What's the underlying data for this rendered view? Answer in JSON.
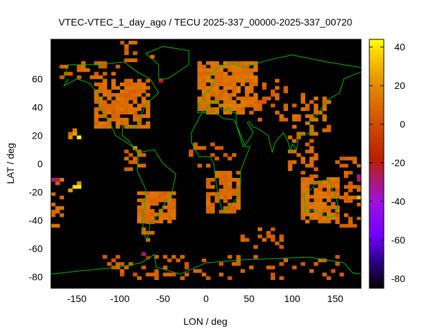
{
  "chart_data": {
    "type": "heatmap",
    "title": "VTEC-VTEC_1_day_ago / TECU 2025-337_00000-2025-337_00720",
    "xlabel": "LON / deg",
    "ylabel": "LAT / deg",
    "xlim": [
      -180,
      180
    ],
    "ylim": [
      -88,
      88
    ],
    "xticks": [
      -150,
      -100,
      -50,
      0,
      50,
      100,
      150
    ],
    "yticks": [
      -80,
      -60,
      -40,
      -20,
      0,
      20,
      40,
      60
    ],
    "cell_size_deg": [
      5,
      2.5
    ],
    "background_value": "no data",
    "colorbar": {
      "range": [
        -85,
        44
      ],
      "ticks": [
        -80,
        -60,
        -40,
        -20,
        0,
        20,
        40
      ],
      "stops": [
        {
          "v": -85,
          "c": "#000000"
        },
        {
          "v": -70,
          "c": "#300090"
        },
        {
          "v": -58,
          "c": "#7000ff"
        },
        {
          "v": -40,
          "c": "#a010e0"
        },
        {
          "v": -25,
          "c": "#b01c48"
        },
        {
          "v": -18,
          "c": "#b82000"
        },
        {
          "v": 0,
          "c": "#d04c00"
        },
        {
          "v": 20,
          "c": "#e48a00"
        },
        {
          "v": 36,
          "c": "#f8d000"
        },
        {
          "v": 44,
          "c": "#ffff00"
        }
      ]
    },
    "regions": [
      {
        "lon": [
          -130,
          -65
        ],
        "lat": [
          25,
          60
        ],
        "value": 10,
        "coverage": 0.8
      },
      {
        "lon": [
          -170,
          -100
        ],
        "lat": [
          60,
          72
        ],
        "value": 8,
        "coverage": 0.45
      },
      {
        "lon": [
          -100,
          -60
        ],
        "lat": [
          72,
          85
        ],
        "value": 8,
        "coverage": 0.25
      },
      {
        "lon": [
          -10,
          60
        ],
        "lat": [
          35,
          72
        ],
        "value": 12,
        "coverage": 0.8
      },
      {
        "lon": [
          60,
          95
        ],
        "lat": [
          30,
          60
        ],
        "value": 8,
        "coverage": 0.25
      },
      {
        "lon": [
          100,
          145
        ],
        "lat": [
          20,
          50
        ],
        "value": 10,
        "coverage": 0.4
      },
      {
        "lon": [
          -80,
          -35
        ],
        "lat": [
          -42,
          -20
        ],
        "value": 10,
        "coverage": 0.8
      },
      {
        "lon": [
          -75,
          -60
        ],
        "lat": [
          -55,
          -42
        ],
        "value": 8,
        "coverage": 0.6
      },
      {
        "lon": [
          -95,
          -70
        ],
        "lat": [
          -5,
          15
        ],
        "value": 8,
        "coverage": 0.35
      },
      {
        "lon": [
          0,
          40
        ],
        "lat": [
          -35,
          -5
        ],
        "value": 10,
        "coverage": 0.75
      },
      {
        "lon": [
          -20,
          35
        ],
        "lat": [
          -5,
          15
        ],
        "value": 6,
        "coverage": 0.2
      },
      {
        "lon": [
          110,
          155
        ],
        "lat": [
          -42,
          -10
        ],
        "value": 12,
        "coverage": 0.85
      },
      {
        "lon": [
          95,
          130
        ],
        "lat": [
          -10,
          20
        ],
        "value": 8,
        "coverage": 0.35
      },
      {
        "lon": [
          40,
          90
        ],
        "lat": [
          -60,
          -45
        ],
        "value": 8,
        "coverage": 0.3
      },
      {
        "lon": [
          -120,
          160
        ],
        "lat": [
          -82,
          -65
        ],
        "value": 6,
        "coverage": 0.18
      },
      {
        "lon": [
          150,
          180
        ],
        "lat": [
          -45,
          5
        ],
        "value": 8,
        "coverage": 0.35
      },
      {
        "lon": [
          -180,
          -165
        ],
        "lat": [
          -45,
          -10
        ],
        "value": 10,
        "coverage": 0.4
      }
    ],
    "cells": [
      {
        "lon": -160,
        "lat": 20,
        "value": 10
      },
      {
        "lon": -155,
        "lat": 20,
        "value": 25
      },
      {
        "lon": -155,
        "lat": 22.5,
        "value": 15
      },
      {
        "lon": -150,
        "lat": 17.5,
        "value": 43
      },
      {
        "lon": -160,
        "lat": 17.5,
        "value": 20
      },
      {
        "lon": -150,
        "lat": -15,
        "value": 20
      },
      {
        "lon": -155,
        "lat": -17.5,
        "value": 38
      },
      {
        "lon": -150,
        "lat": -17.5,
        "value": 40
      },
      {
        "lon": -160,
        "lat": -20,
        "value": 25
      },
      {
        "lon": -180,
        "lat": -12.5,
        "value": -30
      },
      {
        "lon": -175,
        "lat": -12.5,
        "value": -25
      },
      {
        "lon": 175,
        "lat": -10,
        "value": -30
      },
      {
        "lon": 175,
        "lat": -12.5,
        "value": -28
      },
      {
        "lon": 175,
        "lat": -25,
        "value": 30
      },
      {
        "lon": -75,
        "lat": -65,
        "value": -30
      },
      {
        "lon": -70,
        "lat": -67.5,
        "value": -15
      },
      {
        "lon": -55,
        "lat": 57.5,
        "value": -15
      },
      {
        "lon": -85,
        "lat": 10,
        "value": 20
      }
    ]
  }
}
